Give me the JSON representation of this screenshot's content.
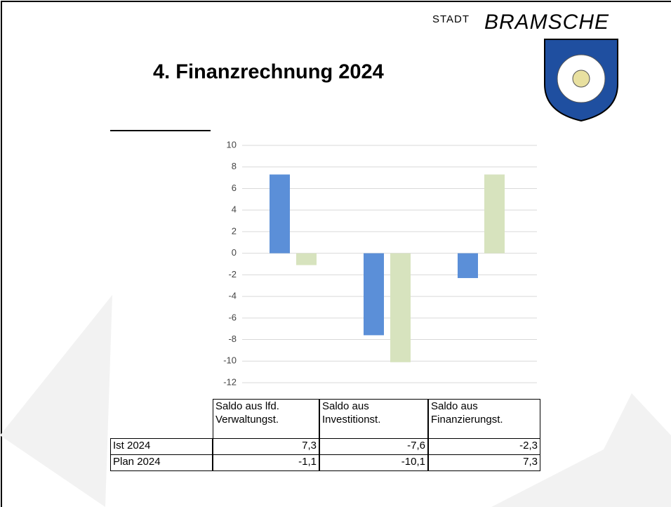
{
  "logo": {
    "prefix": "STADT",
    "name": "BRAMSCHE"
  },
  "chart_data": {
    "type": "bar",
    "title": "4. Finanzrechnung 2024",
    "categories": [
      "Saldo aus lfd. Verwaltungst.",
      "Saldo aus Investitionst.",
      "Saldo aus Finanzierungst."
    ],
    "series": [
      {
        "name": "Ist 2024",
        "color": "#5b8fd8",
        "values": [
          7.3,
          -7.6,
          -2.3
        ],
        "value_labels": [
          "7,3",
          "-7,6",
          "-2,3"
        ]
      },
      {
        "name": "Plan 2024",
        "color": "#d7e3be",
        "values": [
          -1.1,
          -10.1,
          7.3
        ],
        "value_labels": [
          "-1,1",
          "-10,1",
          "7,3"
        ]
      }
    ],
    "ylim": [
      -12,
      10
    ],
    "yticks": [
      10,
      8,
      6,
      4,
      2,
      0,
      -2,
      -4,
      -6,
      -8,
      -10,
      -12
    ],
    "grid": true
  }
}
